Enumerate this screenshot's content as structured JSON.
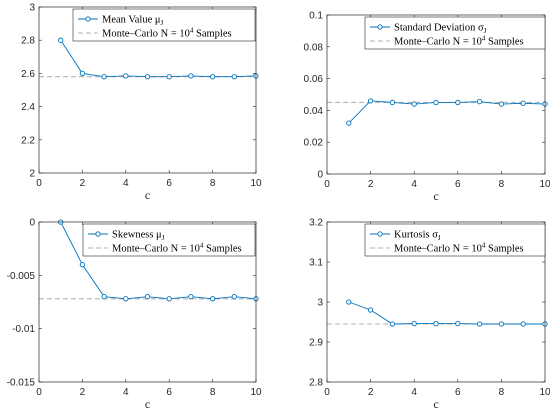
{
  "chart_data": [
    {
      "type": "line",
      "xlabel": "c",
      "ylabel": "",
      "xlim": [
        0,
        10
      ],
      "ylim": [
        2,
        3
      ],
      "xticks": [
        "0",
        "2",
        "4",
        "6",
        "8",
        "10"
      ],
      "yticks": [
        "2",
        "2.2",
        "2.4",
        "2.6",
        "2.8",
        "3"
      ],
      "legend_position": "top-left",
      "series": [
        {
          "name": "Mean Value μ_J",
          "label_text": "Mean Value μ",
          "label_sub": "J",
          "color": "#0072bd",
          "style": "solid-with-circle-markers",
          "x": [
            1,
            2,
            3,
            4,
            5,
            6,
            7,
            8,
            9,
            10
          ],
          "values": [
            2.8,
            2.6,
            2.58,
            2.585,
            2.58,
            2.58,
            2.585,
            2.58,
            2.58,
            2.585
          ]
        },
        {
          "name": "Monte–Carlo N = 10^4 Samples",
          "label_text": "Monte–Carlo N = 10",
          "label_sup": "4",
          "label_tail": " Samples",
          "color": "#b3b3b3",
          "style": "dashed",
          "x": [
            0,
            10
          ],
          "values": [
            2.58,
            2.58
          ]
        }
      ]
    },
    {
      "type": "line",
      "xlabel": "c",
      "ylabel": "",
      "xlim": [
        0,
        10
      ],
      "ylim": [
        0,
        0.1
      ],
      "xticks": [
        "0",
        "2",
        "4",
        "6",
        "8",
        "10"
      ],
      "yticks": [
        "0",
        "0.02",
        "0.04",
        "0.06",
        "0.08",
        "0.1"
      ],
      "legend_position": "top-right",
      "series": [
        {
          "name": "Standard Deviation σ_J",
          "label_text": "Standard Deviation σ",
          "label_sub": "J",
          "color": "#0072bd",
          "style": "solid-with-circle-markers",
          "x": [
            1,
            2,
            3,
            4,
            5,
            6,
            7,
            8,
            9,
            10
          ],
          "values": [
            0.032,
            0.046,
            0.045,
            0.044,
            0.045,
            0.045,
            0.0455,
            0.044,
            0.0445,
            0.044
          ]
        },
        {
          "name": "Monte–Carlo N = 10^4 Samples",
          "label_text": "Monte–Carlo N = 10",
          "label_sup": "4",
          "label_tail": " Samples",
          "color": "#b3b3b3",
          "style": "dashed",
          "x": [
            0,
            10
          ],
          "values": [
            0.045,
            0.045
          ]
        }
      ]
    },
    {
      "type": "line",
      "xlabel": "c",
      "ylabel": "",
      "xlim": [
        0,
        10
      ],
      "ylim": [
        -0.015,
        0
      ],
      "xticks": [
        "0",
        "2",
        "4",
        "6",
        "8",
        "10"
      ],
      "yticks": [
        "-0.015",
        "-0.01",
        "-0.005",
        "0"
      ],
      "legend_position": "top-right",
      "series": [
        {
          "name": "Skewness μ_J",
          "label_text": "Skewness μ",
          "label_sub": "J",
          "color": "#0072bd",
          "style": "solid-with-circle-markers",
          "x": [
            1,
            2,
            3,
            4,
            5,
            6,
            7,
            8,
            9,
            10
          ],
          "values": [
            0,
            -0.004,
            -0.007,
            -0.0072,
            -0.007,
            -0.0072,
            -0.007,
            -0.0072,
            -0.007,
            -0.0072
          ]
        },
        {
          "name": "Monte–Carlo N = 10^4 Samples",
          "label_text": "Monte–Carlo N = 10",
          "label_sup": "4",
          "label_tail": " Samples",
          "color": "#b3b3b3",
          "style": "dashed",
          "x": [
            0,
            10
          ],
          "values": [
            -0.0072,
            -0.0072
          ]
        }
      ]
    },
    {
      "type": "line",
      "xlabel": "c",
      "ylabel": "",
      "xlim": [
        0,
        10
      ],
      "ylim": [
        2.8,
        3.2
      ],
      "xticks": [
        "0",
        "2",
        "4",
        "6",
        "8",
        "10"
      ],
      "yticks": [
        "2.8",
        "2.9",
        "3",
        "3.1",
        "3.2"
      ],
      "legend_position": "top-right",
      "series": [
        {
          "name": "Kurtosis σ_J",
          "label_text": "Kurtosis σ",
          "label_sub": "J",
          "color": "#0072bd",
          "style": "solid-with-circle-markers",
          "x": [
            1,
            2,
            3,
            4,
            5,
            6,
            7,
            8,
            9,
            10
          ],
          "values": [
            3.0,
            2.98,
            2.945,
            2.946,
            2.946,
            2.946,
            2.945,
            2.945,
            2.945,
            2.945
          ]
        },
        {
          "name": "Monte–Carlo N = 10^4 Samples",
          "label_text": "Monte–Carlo N = 10",
          "label_sup": "4",
          "label_tail": " Samples",
          "color": "#b3b3b3",
          "style": "dashed",
          "x": [
            0,
            10
          ],
          "values": [
            2.945,
            2.945
          ]
        }
      ]
    }
  ]
}
